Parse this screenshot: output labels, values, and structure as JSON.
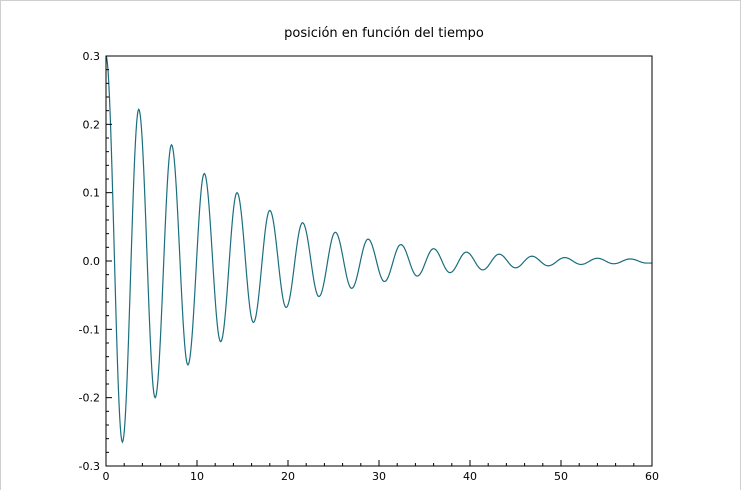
{
  "chart_data": {
    "type": "line",
    "title": "posición en función del tiempo",
    "xlabel": "",
    "ylabel": "",
    "xlim": [
      0,
      60
    ],
    "ylim": [
      -0.3,
      0.3
    ],
    "x_ticks": [
      "0",
      "10",
      "20",
      "30",
      "40",
      "50",
      "60"
    ],
    "y_ticks": [
      "0.3",
      "0.2",
      "0.1",
      "0.0",
      "-0.1",
      "-0.2",
      "-0.3"
    ],
    "grid": false,
    "line_color": "#1a6e7e",
    "series": [
      {
        "x": [
          0,
          1.8,
          3.6,
          5.4,
          7.2,
          9.0,
          10.8,
          12.6,
          14.4,
          16.2,
          18.0,
          19.8,
          21.6,
          23.4,
          25.2,
          27.0,
          28.8,
          30.6,
          32.4,
          34.2,
          36.0,
          37.8,
          39.6,
          41.4,
          43.2,
          45.0,
          46.8,
          48.6,
          50.4,
          52.2,
          54.0,
          55.8,
          57.6,
          59.4,
          60
        ],
        "y": [
          0.3,
          -0.265,
          0.222,
          -0.2,
          0.17,
          -0.152,
          0.128,
          -0.118,
          0.1,
          -0.09,
          0.074,
          -0.068,
          0.056,
          -0.052,
          0.042,
          -0.04,
          0.032,
          -0.03,
          0.024,
          -0.022,
          0.018,
          -0.017,
          0.013,
          -0.013,
          0.01,
          -0.01,
          0.007,
          -0.007,
          0.005,
          -0.005,
          0.004,
          -0.004,
          0.003,
          -0.003,
          -0.003
        ]
      }
    ]
  }
}
